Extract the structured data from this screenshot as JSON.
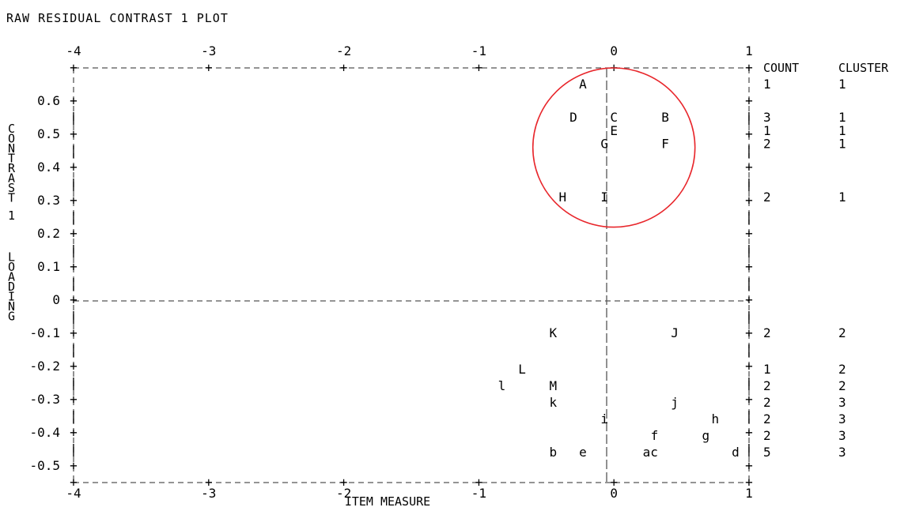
{
  "chart_data": {
    "type": "scatter",
    "title": "RAW RESIDUAL CONTRAST 1 PLOT",
    "xlabel": "ITEM MEASURE",
    "ylabel": "CONTRAST 1 LOADING",
    "xlim": [
      -4,
      1
    ],
    "ylim": [
      -0.55,
      0.7
    ],
    "x_ticks": [
      -4,
      -3,
      -2,
      -1,
      0,
      1
    ],
    "x_tick_labels": [
      "-4",
      "-3",
      "-2",
      "-1",
      "0",
      "1"
    ],
    "y_ticks": [
      0.6,
      0.5,
      0.4,
      0.3,
      0.2,
      0.1,
      0,
      -0.1,
      -0.2,
      -0.3,
      -0.4,
      -0.5
    ],
    "y_tick_labels": [
      "0.6",
      "0.5",
      "0.4",
      "0.3",
      "0.2",
      "0.1",
      "0",
      "-0.1",
      "-0.2",
      "-0.3",
      "-0.4",
      "-0.5"
    ],
    "points": [
      {
        "label": "A",
        "x": -0.23,
        "y": 0.65
      },
      {
        "label": "D",
        "x": -0.3,
        "y": 0.55
      },
      {
        "label": "C",
        "x": 0.0,
        "y": 0.55
      },
      {
        "label": "B",
        "x": 0.38,
        "y": 0.55
      },
      {
        "label": "E",
        "x": 0.0,
        "y": 0.51
      },
      {
        "label": "G",
        "x": -0.07,
        "y": 0.47
      },
      {
        "label": "F",
        "x": 0.38,
        "y": 0.47
      },
      {
        "label": "H",
        "x": -0.38,
        "y": 0.31
      },
      {
        "label": "I",
        "x": -0.07,
        "y": 0.31
      },
      {
        "label": "K",
        "x": -0.45,
        "y": -0.1
      },
      {
        "label": "J",
        "x": 0.45,
        "y": -0.1
      },
      {
        "label": "L",
        "x": -0.68,
        "y": -0.21
      },
      {
        "label": "l",
        "x": -0.83,
        "y": -0.26
      },
      {
        "label": "M",
        "x": -0.45,
        "y": -0.26
      },
      {
        "label": "k",
        "x": -0.45,
        "y": -0.31
      },
      {
        "label": "j",
        "x": 0.45,
        "y": -0.31
      },
      {
        "label": "i",
        "x": -0.07,
        "y": -0.36
      },
      {
        "label": "h",
        "x": 0.75,
        "y": -0.36
      },
      {
        "label": "f",
        "x": 0.3,
        "y": -0.41
      },
      {
        "label": "g",
        "x": 0.68,
        "y": -0.41
      },
      {
        "label": "b",
        "x": -0.45,
        "y": -0.46
      },
      {
        "label": "e",
        "x": -0.23,
        "y": -0.46
      },
      {
        "label": "ac",
        "x": 0.27,
        "y": -0.46
      },
      {
        "label": "d",
        "x": 0.9,
        "y": -0.46
      }
    ],
    "side_table": {
      "headers": [
        "COUNT",
        "CLUSTER"
      ],
      "rows": [
        {
          "y": 0.65,
          "count": "1",
          "cluster": "1"
        },
        {
          "y": 0.55,
          "count": "3",
          "cluster": "1"
        },
        {
          "y": 0.51,
          "count": "1",
          "cluster": "1"
        },
        {
          "y": 0.47,
          "count": "2",
          "cluster": "1"
        },
        {
          "y": 0.31,
          "count": "2",
          "cluster": "1"
        },
        {
          "y": -0.1,
          "count": "2",
          "cluster": "2"
        },
        {
          "y": -0.21,
          "count": "1",
          "cluster": "2"
        },
        {
          "y": -0.26,
          "count": "2",
          "cluster": "2"
        },
        {
          "y": -0.31,
          "count": "2",
          "cluster": "3"
        },
        {
          "y": -0.36,
          "count": "2",
          "cluster": "3"
        },
        {
          "y": -0.41,
          "count": "2",
          "cluster": "3"
        },
        {
          "y": -0.46,
          "count": "5",
          "cluster": "3"
        }
      ]
    },
    "highlight_circle": {
      "cx": 0.0,
      "cy": 0.46,
      "rx": 0.6,
      "ry": 0.24,
      "color": "#e8262b"
    },
    "grid": false,
    "zero_lines": true
  }
}
